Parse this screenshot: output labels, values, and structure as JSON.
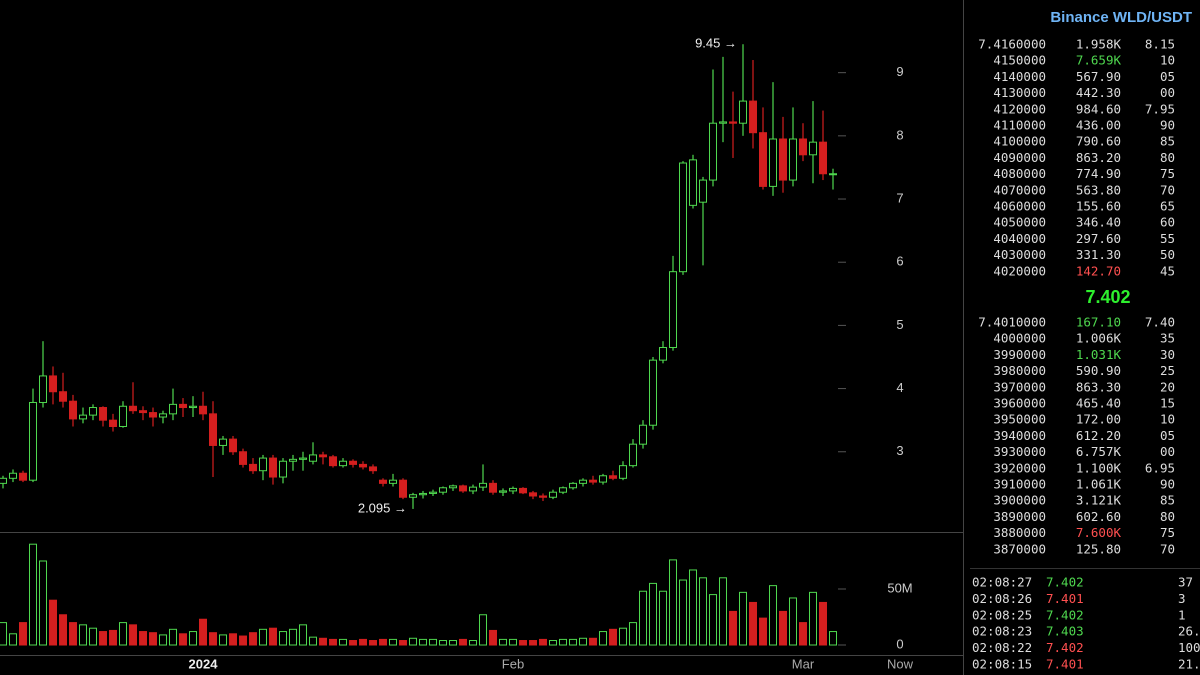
{
  "chart_data": {
    "type": "candlestick",
    "categories": [
      null,
      null,
      null,
      null,
      null,
      null,
      null,
      null,
      null,
      null,
      null,
      null,
      null,
      null,
      null,
      null,
      null,
      null,
      null,
      null,
      "2024",
      null,
      null,
      null,
      null,
      null,
      null,
      null,
      null,
      null,
      null,
      null,
      null,
      null,
      null,
      null,
      null,
      null,
      null,
      null,
      null,
      null,
      null,
      null,
      null,
      null,
      null,
      null,
      null,
      null,
      null,
      "Feb",
      null,
      null,
      null,
      null,
      null,
      null,
      null,
      null,
      null,
      null,
      null,
      null,
      null,
      null,
      null,
      null,
      null,
      null,
      null,
      null,
      null,
      null,
      null,
      null,
      null,
      null,
      null,
      null,
      "Mar",
      null,
      null,
      null
    ],
    "open": [
      2.5,
      2.58,
      2.66,
      2.55,
      3.78,
      4.2,
      3.95,
      3.8,
      3.52,
      3.58,
      3.7,
      3.5,
      3.4,
      3.72,
      3.65,
      3.62,
      3.55,
      3.6,
      3.75,
      3.7,
      3.72,
      3.6,
      3.1,
      3.2,
      3.0,
      2.8,
      2.7,
      2.9,
      2.6,
      2.85,
      2.88,
      2.85,
      2.95,
      2.92,
      2.78,
      2.85,
      2.8,
      2.76,
      2.55,
      2.5,
      2.55,
      2.28,
      2.32,
      2.34,
      2.36,
      2.43,
      2.46,
      2.38,
      2.44,
      2.5,
      2.36,
      2.38,
      2.42,
      2.35,
      2.3,
      2.28,
      2.36,
      2.43,
      2.5,
      2.55,
      2.52,
      2.62,
      2.58,
      2.78,
      3.12,
      3.42,
      4.45,
      4.65,
      5.85,
      6.9,
      6.95,
      7.3,
      8.2,
      8.22,
      8.2,
      8.55,
      8.05,
      7.2,
      7.95,
      7.3,
      7.95,
      7.7,
      7.9,
      7.4
    ],
    "high": [
      2.62,
      2.72,
      2.7,
      4.0,
      4.75,
      4.35,
      4.25,
      3.9,
      3.7,
      3.75,
      3.72,
      3.6,
      3.8,
      4.1,
      3.72,
      3.7,
      3.65,
      4.0,
      3.85,
      3.88,
      3.95,
      3.8,
      3.25,
      3.25,
      3.05,
      2.9,
      2.95,
      2.95,
      2.9,
      2.95,
      3.0,
      3.15,
      3.0,
      2.95,
      2.9,
      2.88,
      2.85,
      2.8,
      2.58,
      2.65,
      2.58,
      2.35,
      2.38,
      2.4,
      2.45,
      2.48,
      2.48,
      2.48,
      2.8,
      2.55,
      2.42,
      2.45,
      2.44,
      2.38,
      2.34,
      2.4,
      2.45,
      2.52,
      2.58,
      2.62,
      2.65,
      2.7,
      2.85,
      3.2,
      3.5,
      4.5,
      4.75,
      6.1,
      7.6,
      7.7,
      7.35,
      9.05,
      9.25,
      8.7,
      9.45,
      9.2,
      8.45,
      8.85,
      8.3,
      8.45,
      8.2,
      8.55,
      8.4,
      7.48
    ],
    "low": [
      2.42,
      2.52,
      2.52,
      2.52,
      3.7,
      3.75,
      3.7,
      3.4,
      3.45,
      3.5,
      3.4,
      3.32,
      3.38,
      3.6,
      3.5,
      3.4,
      3.45,
      3.5,
      3.55,
      3.55,
      3.5,
      2.6,
      2.95,
      2.95,
      2.75,
      2.65,
      2.55,
      2.48,
      2.5,
      2.7,
      2.7,
      2.8,
      2.8,
      2.75,
      2.75,
      2.75,
      2.72,
      2.65,
      2.45,
      2.45,
      2.25,
      2.095,
      2.26,
      2.3,
      2.32,
      2.38,
      2.35,
      2.33,
      2.38,
      2.32,
      2.3,
      2.33,
      2.33,
      2.25,
      2.22,
      2.25,
      2.33,
      2.4,
      2.45,
      2.48,
      2.48,
      2.55,
      2.55,
      2.75,
      3.05,
      3.35,
      4.4,
      4.6,
      5.8,
      6.85,
      5.95,
      7.2,
      7.9,
      7.65,
      8.0,
      7.8,
      7.15,
      7.05,
      7.1,
      7.2,
      7.6,
      7.25,
      7.3,
      7.15
    ],
    "close": [
      2.58,
      2.66,
      2.55,
      3.78,
      4.2,
      3.95,
      3.8,
      3.52,
      3.58,
      3.7,
      3.5,
      3.4,
      3.72,
      3.65,
      3.62,
      3.55,
      3.6,
      3.75,
      3.7,
      3.72,
      3.6,
      3.1,
      3.2,
      3.0,
      2.8,
      2.7,
      2.9,
      2.6,
      2.85,
      2.88,
      2.9,
      2.95,
      2.92,
      2.78,
      2.85,
      2.8,
      2.76,
      2.7,
      2.5,
      2.55,
      2.28,
      2.32,
      2.34,
      2.36,
      2.43,
      2.46,
      2.38,
      2.44,
      2.5,
      2.36,
      2.38,
      2.42,
      2.35,
      2.3,
      2.28,
      2.36,
      2.43,
      2.5,
      2.55,
      2.52,
      2.62,
      2.58,
      2.78,
      3.12,
      3.42,
      4.45,
      4.65,
      5.85,
      7.57,
      7.62,
      7.3,
      8.2,
      8.22,
      8.2,
      8.55,
      8.05,
      7.2,
      7.95,
      7.3,
      7.95,
      7.7,
      7.9,
      7.4,
      7.4
    ],
    "volume": [
      20000000,
      10000000,
      20000000,
      90000000,
      75000000,
      40000000,
      27000000,
      20000000,
      18000000,
      15000000,
      12000000,
      13000000,
      20000000,
      18000000,
      12000000,
      11000000,
      9000000,
      14000000,
      10000000,
      12000000,
      23000000,
      11000000,
      9000000,
      10000000,
      8000000,
      11000000,
      14000000,
      15000000,
      12000000,
      14000000,
      18000000,
      7000000,
      6000000,
      5000000,
      5000000,
      4000000,
      5000000,
      4000000,
      5000000,
      5000000,
      4000000,
      6000000,
      5000000,
      5000000,
      4000000,
      4000000,
      5000000,
      4000000,
      27000000,
      13000000,
      5000000,
      5000000,
      4000000,
      4000000,
      5000000,
      4000000,
      5000000,
      5000000,
      6000000,
      6000000,
      12000000,
      14000000,
      15000000,
      20000000,
      48000000,
      55000000,
      48000000,
      76000000,
      58000000,
      67000000,
      60000000,
      45000000,
      60000000,
      30000000,
      47000000,
      38000000,
      24000000,
      53000000,
      30000000,
      42000000,
      20000000,
      47000000,
      38000000,
      12000000
    ],
    "ylim": [
      1.73,
      10.15
    ],
    "yticks": [
      3,
      4,
      5,
      6,
      7,
      8,
      9
    ],
    "y2lim": [
      0,
      93750000
    ],
    "y2ticks": [
      0,
      {
        "value": 50000000,
        "label": "50M"
      }
    ],
    "up_color": "#4fd84f",
    "down_color": "#d41f1f",
    "annotations": [
      {
        "text": "9.45 →",
        "value": 9.45
      },
      {
        "text": "2.095 →",
        "value": 2.095
      }
    ],
    "now_label": "Now"
  },
  "order_book": {
    "title": "Binance WLD/USDT",
    "asks": [
      [
        "7.4160000",
        "1.958K",
        "8.15",
        "#dddddd"
      ],
      [
        "4150000",
        "7.659K",
        "10",
        "#4fd84f"
      ],
      [
        "4140000",
        "567.90",
        "05",
        "#dddddd"
      ],
      [
        "4130000",
        "442.30",
        "00",
        "#dddddd"
      ],
      [
        "4120000",
        "984.60",
        "7.95",
        "#dddddd"
      ],
      [
        "4110000",
        "436.00",
        "90",
        "#dddddd"
      ],
      [
        "4100000",
        "790.60",
        "85",
        "#dddddd"
      ],
      [
        "4090000",
        "863.20",
        "80",
        "#dddddd"
      ],
      [
        "4080000",
        "774.90",
        "75",
        "#dddddd"
      ],
      [
        "4070000",
        "563.80",
        "70",
        "#dddddd"
      ],
      [
        "4060000",
        "155.60",
        "65",
        "#dddddd"
      ],
      [
        "4050000",
        "346.40",
        "60",
        "#dddddd"
      ],
      [
        "4040000",
        "297.60",
        "55",
        "#dddddd"
      ],
      [
        "4030000",
        "331.30",
        "50",
        "#dddddd"
      ],
      [
        "4020000",
        "142.70",
        "45",
        "#ff5050"
      ]
    ],
    "last_price": "7.402",
    "bids": [
      [
        "7.4010000",
        "167.10",
        "7.40",
        "#4fd84f"
      ],
      [
        "4000000",
        "1.006K",
        "35",
        "#dddddd"
      ],
      [
        "3990000",
        "1.031K",
        "30",
        "#4fd84f"
      ],
      [
        "3980000",
        "590.90",
        "25",
        "#dddddd"
      ],
      [
        "3970000",
        "863.30",
        "20",
        "#dddddd"
      ],
      [
        "3960000",
        "465.40",
        "15",
        "#dddddd"
      ],
      [
        "3950000",
        "172.00",
        "10",
        "#dddddd"
      ],
      [
        "3940000",
        "612.20",
        "05",
        "#dddddd"
      ],
      [
        "3930000",
        "6.757K",
        "00",
        "#dddddd"
      ],
      [
        "3920000",
        "1.100K",
        "6.95",
        "#dddddd"
      ],
      [
        "3910000",
        "1.061K",
        "90",
        "#dddddd"
      ],
      [
        "3900000",
        "3.121K",
        "85",
        "#dddddd"
      ],
      [
        "3890000",
        "602.60",
        "80",
        "#dddddd"
      ],
      [
        "3880000",
        "7.600K",
        "75",
        "#ff5050"
      ],
      [
        "3870000",
        "125.80",
        "70",
        "#dddddd"
      ]
    ]
  },
  "trades": [
    [
      "02:08:27",
      "7.402",
      "37",
      "#4fd84f"
    ],
    [
      "02:08:26",
      "7.401",
      "3",
      "#ff5050"
    ],
    [
      "02:08:25",
      "7.402",
      "1",
      "#4fd84f"
    ],
    [
      "02:08:23",
      "7.403",
      "26.",
      "#4fd84f"
    ],
    [
      "02:08:22",
      "7.402",
      "100",
      "#ff5050"
    ],
    [
      "02:08:15",
      "7.401",
      "21.",
      "#ff5050"
    ]
  ]
}
